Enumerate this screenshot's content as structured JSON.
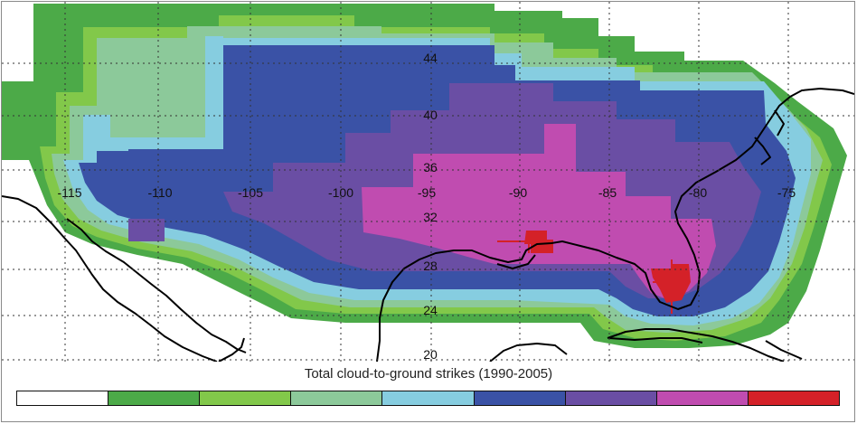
{
  "map": {
    "title": "Total cloud-to-ground strikes (1990-2005)",
    "longitude_labels": [
      "-115",
      "-110",
      "-105",
      "-100",
      "-95",
      "-90",
      "-85",
      "-80",
      "-75"
    ],
    "latitude_labels": [
      "44",
      "40",
      "36",
      "32",
      "28",
      "24",
      "20"
    ],
    "legend_colors": [
      "#ffffff",
      "#4caa48",
      "#82c84a",
      "#8cc99a",
      "#86cde0",
      "#3a52a6",
      "#6a4ea4",
      "#c04cb0",
      "#d42128"
    ],
    "gridlines": "dotted",
    "coastline_color": "#000000"
  }
}
